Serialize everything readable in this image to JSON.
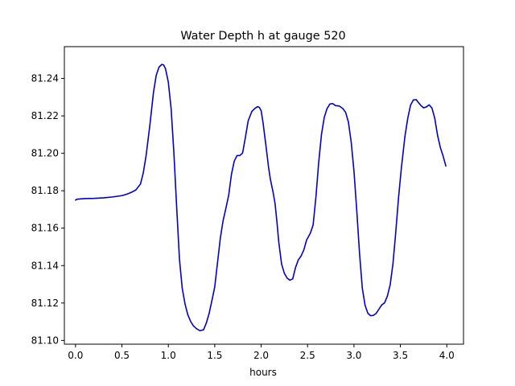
{
  "chart_data": {
    "type": "line",
    "title": "Water Depth h at gauge 520",
    "xlabel": "hours",
    "ylabel": "",
    "xlim": [
      -0.12,
      4.18
    ],
    "ylim": [
      81.098,
      81.257
    ],
    "x_ticks": [
      0.0,
      0.5,
      1.0,
      1.5,
      2.0,
      2.5,
      3.0,
      3.5,
      4.0
    ],
    "x_tick_labels": [
      "0.0",
      "0.5",
      "1.0",
      "1.5",
      "2.0",
      "2.5",
      "3.0",
      "3.5",
      "4.0"
    ],
    "y_ticks": [
      81.1,
      81.12,
      81.14,
      81.16,
      81.18,
      81.2,
      81.22,
      81.24
    ],
    "y_tick_labels": [
      "81.10",
      "81.12",
      "81.14",
      "81.16",
      "81.18",
      "81.20",
      "81.22",
      "81.24"
    ],
    "grid": false,
    "legend": "none",
    "series_color": "#0000cc",
    "series": [
      {
        "x": [
          0.0,
          0.02,
          0.1,
          0.2,
          0.3,
          0.4,
          0.5,
          0.55,
          0.6,
          0.65,
          0.7,
          0.73,
          0.76,
          0.8,
          0.84,
          0.87,
          0.9,
          0.93,
          0.95,
          0.97,
          1.0,
          1.03,
          1.06,
          1.09,
          1.12,
          1.15,
          1.18,
          1.21,
          1.24,
          1.27,
          1.3,
          1.34,
          1.38,
          1.41,
          1.44,
          1.47,
          1.5,
          1.53,
          1.56,
          1.59,
          1.62,
          1.65,
          1.68,
          1.71,
          1.74,
          1.77,
          1.8,
          1.83,
          1.86,
          1.9,
          1.93,
          1.96,
          1.98,
          2.0,
          2.02,
          2.05,
          2.08,
          2.1,
          2.13,
          2.15,
          2.17,
          2.19,
          2.22,
          2.25,
          2.28,
          2.31,
          2.34,
          2.37,
          2.4,
          2.43,
          2.46,
          2.49,
          2.53,
          2.56,
          2.59,
          2.62,
          2.65,
          2.68,
          2.71,
          2.74,
          2.77,
          2.8,
          2.84,
          2.88,
          2.91,
          2.94,
          2.97,
          3.0,
          3.03,
          3.06,
          3.09,
          3.12,
          3.15,
          3.18,
          3.21,
          3.24,
          3.27,
          3.3,
          3.33,
          3.36,
          3.39,
          3.42,
          3.45,
          3.48,
          3.51,
          3.55,
          3.58,
          3.61,
          3.64,
          3.67,
          3.69,
          3.72,
          3.75,
          3.78,
          3.81,
          3.84,
          3.87,
          3.9,
          3.93,
          3.96,
          3.99
        ],
        "y": [
          81.175,
          81.1755,
          81.1758,
          81.1759,
          81.1762,
          81.1767,
          81.1774,
          81.1781,
          81.1791,
          81.1804,
          81.1836,
          81.1895,
          81.1986,
          81.2145,
          81.2325,
          81.2418,
          81.2461,
          81.2475,
          81.2472,
          81.2451,
          81.238,
          81.224,
          81.2002,
          81.1711,
          81.1434,
          81.1278,
          81.1195,
          81.1137,
          81.1102,
          81.1078,
          81.1064,
          81.1052,
          81.1057,
          81.1094,
          81.1145,
          81.1214,
          81.1286,
          81.1416,
          81.1546,
          81.164,
          81.1706,
          81.1775,
          81.1887,
          81.1958,
          81.1988,
          81.1988,
          81.2001,
          81.2084,
          81.2173,
          81.2224,
          81.2239,
          81.2249,
          81.2246,
          81.2228,
          81.2165,
          81.2048,
          81.1925,
          81.186,
          81.1788,
          81.1731,
          81.1634,
          81.1525,
          81.1409,
          81.1359,
          81.1333,
          81.1322,
          81.1329,
          81.1389,
          81.143,
          81.1451,
          81.1484,
          81.1537,
          81.1573,
          81.1617,
          81.1766,
          81.1951,
          81.2101,
          81.2192,
          81.2239,
          81.2263,
          81.2266,
          81.2255,
          81.2253,
          81.2239,
          81.2219,
          81.2167,
          81.2061,
          81.1905,
          81.1695,
          81.1466,
          81.1279,
          81.1187,
          81.1145,
          81.1132,
          81.1134,
          81.1145,
          81.1168,
          81.119,
          81.1201,
          81.1237,
          81.1297,
          81.1409,
          81.1577,
          81.1762,
          81.1918,
          81.2094,
          81.2188,
          81.2258,
          81.2285,
          81.2287,
          81.2274,
          81.2256,
          81.2243,
          81.2248,
          81.2259,
          81.2242,
          81.2188,
          81.2098,
          81.2032,
          81.1986,
          81.1932
        ]
      }
    ]
  }
}
